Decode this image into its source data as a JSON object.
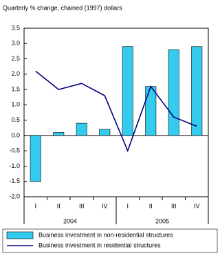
{
  "chart_data": {
    "type": "bar_line",
    "title": "Quarterly % change, chained (1997) dollars",
    "categories": [
      "I",
      "II",
      "III",
      "IV",
      "I",
      "II",
      "III",
      "IV"
    ],
    "year_labels": [
      "2004",
      "2005"
    ],
    "series": [
      {
        "name": "Business investment in non-residential structures",
        "type": "bar",
        "color": "#33ccee",
        "values": [
          -1.5,
          0.1,
          0.4,
          0.2,
          2.9,
          1.6,
          2.8,
          2.9
        ]
      },
      {
        "name": "Business investment in residential structures",
        "type": "line",
        "color": "#000080",
        "values": [
          2.1,
          1.5,
          1.7,
          1.3,
          -0.5,
          1.6,
          0.6,
          0.3
        ]
      }
    ],
    "ylim": [
      -2.0,
      3.5
    ],
    "yticks": [
      {
        "value": -2.0,
        "label": "-2.0"
      },
      -1.5,
      {
        "value": -1.0,
        "label": "-1.0"
      },
      -0.5,
      {
        "value": 0.0,
        "label": "0.0"
      },
      0.5,
      {
        "value": 1.0,
        "label": "1.0"
      },
      1.5,
      {
        "value": 2.0,
        "label": "2.0"
      },
      2.5,
      {
        "value": 3.0,
        "label": "3.0"
      },
      3.5
    ],
    "grid": false
  }
}
